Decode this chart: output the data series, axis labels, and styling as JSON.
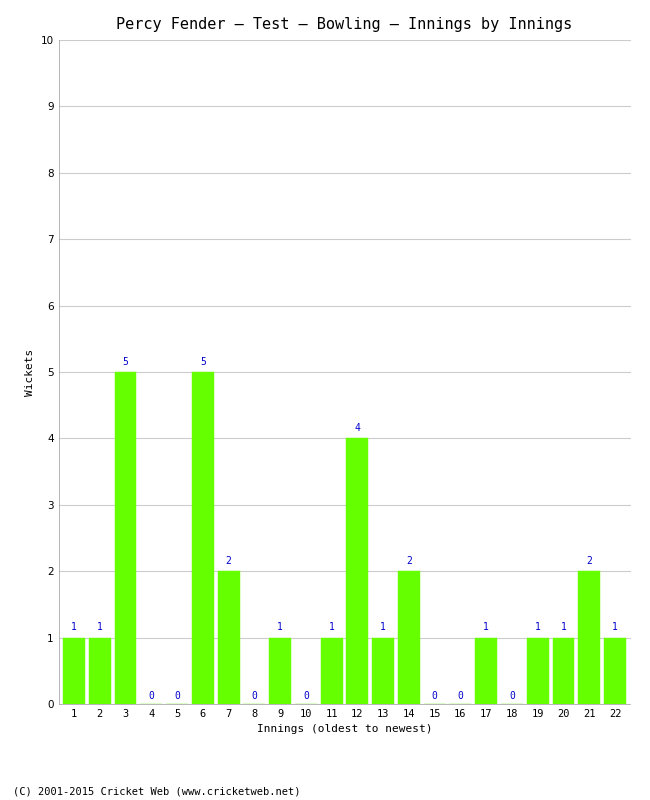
{
  "title": "Percy Fender – Test – Bowling – Innings by Innings",
  "xlabel": "Innings (oldest to newest)",
  "ylabel": "Wickets",
  "categories": [
    "1",
    "2",
    "3",
    "4",
    "5",
    "6",
    "7",
    "8",
    "9",
    "10",
    "11",
    "12",
    "13",
    "14",
    "15",
    "16",
    "17",
    "18",
    "19",
    "20",
    "21",
    "22"
  ],
  "values": [
    1,
    1,
    5,
    0,
    0,
    5,
    2,
    0,
    1,
    0,
    1,
    4,
    1,
    2,
    0,
    0,
    1,
    0,
    1,
    1,
    2,
    1
  ],
  "bar_color": "#66ff00",
  "bar_edge_color": "#66ff00",
  "ylim": [
    0,
    10
  ],
  "yticks": [
    0,
    1,
    2,
    3,
    4,
    5,
    6,
    7,
    8,
    9,
    10
  ],
  "label_color": "#0000cc",
  "label_fontsize": 7,
  "title_fontsize": 11,
  "axis_label_fontsize": 8,
  "tick_fontsize": 7.5,
  "footer": "(C) 2001-2015 Cricket Web (www.cricketweb.net)",
  "footer_fontsize": 7.5,
  "background_color": "#ffffff",
  "grid_color": "#cccccc",
  "bar_width": 0.85
}
